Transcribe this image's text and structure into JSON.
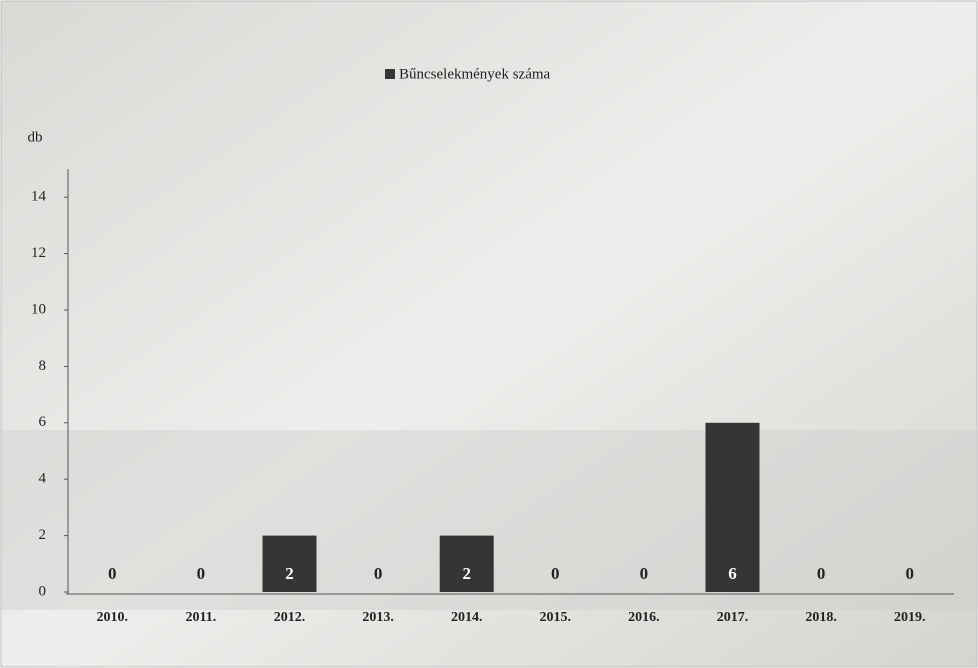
{
  "chart_data": {
    "type": "bar",
    "legend": "Bűncselekmények száma",
    "y_label": "db",
    "categories": [
      "2010.",
      "2011.",
      "2012.",
      "2013.",
      "2014.",
      "2015.",
      "2016.",
      "2017.",
      "2018.",
      "2019."
    ],
    "values": [
      0,
      0,
      2,
      0,
      2,
      0,
      0,
      6,
      0,
      0
    ],
    "color": "#353535",
    "ylim": [
      0,
      15
    ],
    "yticks": [
      0,
      2,
      4,
      6,
      8,
      10,
      12,
      14
    ]
  }
}
